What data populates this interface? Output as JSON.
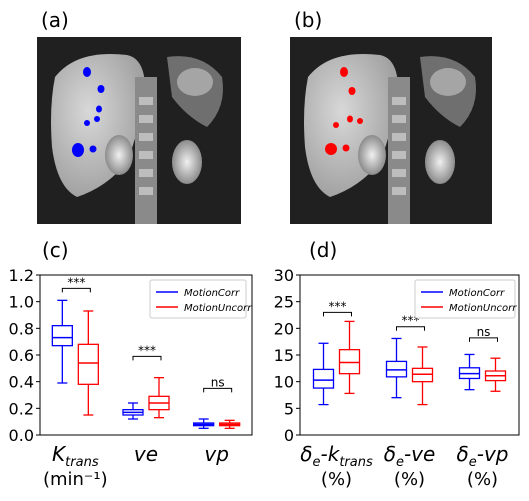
{
  "panels": {
    "a": {
      "label": "(a)",
      "roi_color": "#0000ff"
    },
    "b": {
      "label": "(b)",
      "roi_color": "#ff0000"
    },
    "c": {
      "label": "(c)"
    },
    "d": {
      "label": "(d)"
    }
  },
  "colors": {
    "motion_corr": "#0000ff",
    "motion_uncorr": "#ff0000"
  },
  "chart_data": [
    {
      "type": "box",
      "panel": "c",
      "ylim": [
        0.0,
        1.2
      ],
      "yticks": [
        "0.0",
        "0.2",
        "0.4",
        "0.6",
        "0.8",
        "1.0",
        "1.2"
      ],
      "ytick_values": [
        0.0,
        0.2,
        0.4,
        0.6,
        0.8,
        1.0,
        1.2
      ],
      "categories": [
        {
          "main": "K",
          "sub": "trans",
          "line2": "(min⁻¹)"
        },
        {
          "main": "ve"
        },
        {
          "main": "vp"
        }
      ],
      "legend": {
        "position": "top-right",
        "entries": [
          "MotionCorr",
          "MotionUncorr"
        ]
      },
      "series": [
        {
          "name": "MotionCorr",
          "boxes": [
            {
              "min": 0.39,
              "q1": 0.67,
              "median": 0.73,
              "q3": 0.82,
              "max": 1.01
            },
            {
              "min": 0.12,
              "q1": 0.15,
              "median": 0.17,
              "q3": 0.19,
              "max": 0.24
            },
            {
              "min": 0.05,
              "q1": 0.07,
              "median": 0.08,
              "q3": 0.09,
              "max": 0.12
            }
          ]
        },
        {
          "name": "MotionUncorr",
          "boxes": [
            {
              "min": 0.15,
              "q1": 0.38,
              "median": 0.54,
              "q3": 0.68,
              "max": 0.93
            },
            {
              "min": 0.13,
              "q1": 0.19,
              "median": 0.24,
              "q3": 0.29,
              "max": 0.43
            },
            {
              "min": 0.05,
              "q1": 0.07,
              "median": 0.08,
              "q3": 0.09,
              "max": 0.11
            }
          ]
        }
      ],
      "significance": [
        {
          "category": 0,
          "label": "***",
          "y": 1.1
        },
        {
          "category": 1,
          "label": "***",
          "y": 0.59
        },
        {
          "category": 2,
          "label": "ns",
          "y": 0.35
        }
      ]
    },
    {
      "type": "box",
      "panel": "d",
      "ylim": [
        0,
        30
      ],
      "yticks": [
        "0",
        "5",
        "10",
        "15",
        "20",
        "25",
        "30"
      ],
      "ytick_values": [
        0,
        5,
        10,
        15,
        20,
        25,
        30
      ],
      "categories": [
        {
          "main": "δ",
          "sub": "e",
          "tail": "-k",
          "tailsub": "trans",
          "line2": "(%)"
        },
        {
          "main": "δ",
          "sub": "e",
          "tail": "-ve",
          "line2": "(%)"
        },
        {
          "main": "δ",
          "sub": "e",
          "tail": "-vp",
          "line2": "(%)"
        }
      ],
      "legend": {
        "position": "top-right",
        "entries": [
          "MotionCorr",
          "MotionUncorr"
        ]
      },
      "series": [
        {
          "name": "MotionCorr",
          "boxes": [
            {
              "min": 5.7,
              "q1": 8.8,
              "median": 10.3,
              "q3": 12.3,
              "max": 17.2
            },
            {
              "min": 7.0,
              "q1": 10.9,
              "median": 12.2,
              "q3": 13.8,
              "max": 18.1
            },
            {
              "min": 8.5,
              "q1": 10.6,
              "median": 11.5,
              "q3": 12.6,
              "max": 15.1
            }
          ]
        },
        {
          "name": "MotionUncorr",
          "boxes": [
            {
              "min": 7.8,
              "q1": 11.5,
              "median": 13.6,
              "q3": 16.0,
              "max": 21.3
            },
            {
              "min": 5.7,
              "q1": 10.0,
              "median": 11.4,
              "q3": 12.5,
              "max": 16.5
            },
            {
              "min": 8.2,
              "q1": 10.2,
              "median": 11.1,
              "q3": 12.0,
              "max": 14.4
            }
          ]
        }
      ],
      "significance": [
        {
          "category": 0,
          "label": "***",
          "y": 23.0
        },
        {
          "category": 1,
          "label": "***",
          "y": 20.3
        },
        {
          "category": 2,
          "label": "ns",
          "y": 18.2
        }
      ]
    }
  ]
}
